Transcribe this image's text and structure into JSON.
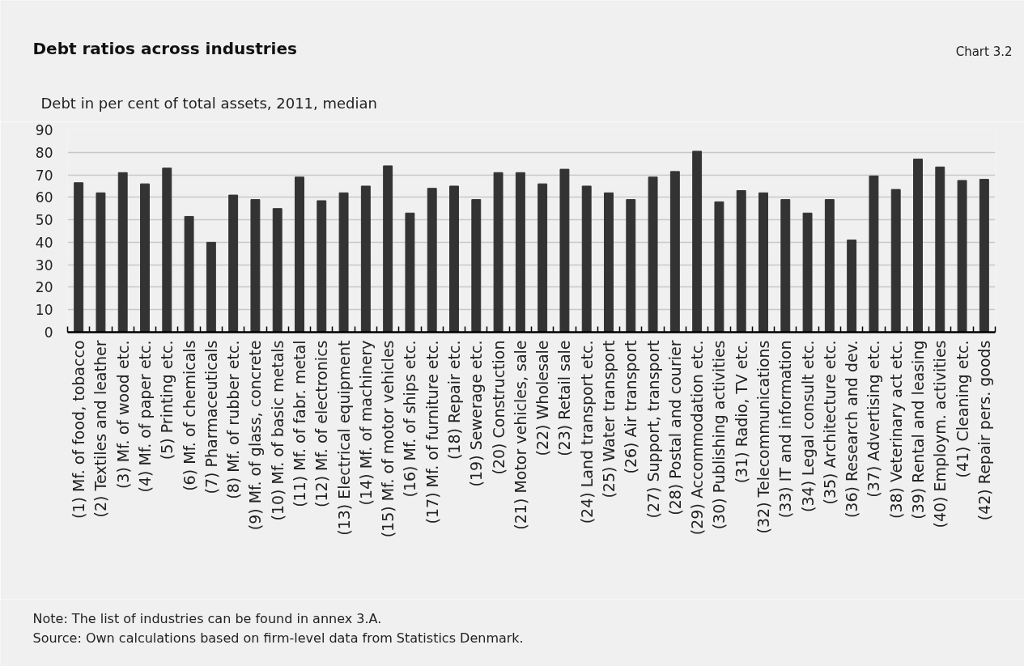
{
  "chart_data": {
    "type": "bar",
    "title": "Debt ratios across industries",
    "ylabel": "Debt in per cent of total assets, 2011, median",
    "categories": [
      "(1) Mf. of food, tobacco",
      "(2) Textiles and leather",
      "(3) Mf. of wood etc.",
      "(4) Mf. of paper etc.",
      "(5) Printing etc.",
      "(6) Mf. of chemicals",
      "(7) Pharmaceuticals",
      "(8) Mf. of rubber etc.",
      "(9) Mf. of glass, concrete",
      "(10) Mf. of basic metals",
      "(11) Mf. of fabr. metal",
      "(12) Mf. of electronics",
      "(13) Electrical equipment",
      "(14) Mf. of machinery",
      "(15) Mf. of motor vehicles",
      "(16) Mf. of ships etc.",
      "(17) Mf. of furniture etc.",
      "(18) Repair etc.",
      "(19) Sewerage etc.",
      "(20) Construction",
      "(21) Motor vehicles, sale",
      "(22) Wholesale",
      "(23) Retail sale",
      "(24) Land transport etc.",
      "(25) Water transport",
      "(26) Air transport",
      "(27) Support, transport",
      "(28) Postal and courier",
      "(29) Accommodation etc.",
      "(30) Publishing activities",
      "(31) Radio, TV etc.",
      "(32) Telecommunications",
      "(33) IT and information",
      "(34) Legal consult etc.",
      "(35) Architecture etc.",
      "(36) Research and dev.",
      "(37) Advertising etc.",
      "(38) Veterinary act etc.",
      "(39) Rental and leasing",
      "(40) Employm. activities",
      "(41) Cleaning etc.",
      "(42) Repair pers. goods"
    ],
    "values": [
      66.5,
      62,
      71,
      66,
      73,
      51.5,
      40,
      61,
      59,
      55,
      69,
      58.5,
      62,
      65,
      74,
      53,
      64,
      65,
      59,
      71,
      71,
      66,
      72.5,
      65,
      62,
      59,
      69,
      71.5,
      80.5,
      58,
      63,
      62,
      59,
      53,
      59,
      41,
      69.5,
      63.5,
      77,
      73.5,
      67.5,
      68
    ],
    "color": "#333333",
    "ylim": [
      0,
      90
    ],
    "yticks": [
      0,
      10,
      20,
      30,
      40,
      50,
      60,
      70,
      80,
      90
    ],
    "grid": "y",
    "annotations": [
      "Chart 3.2",
      "Note: The list of industries can be found in annex 3.A.",
      "Source: Own calculations based on firm-level data from Statistics Denmark."
    ]
  }
}
